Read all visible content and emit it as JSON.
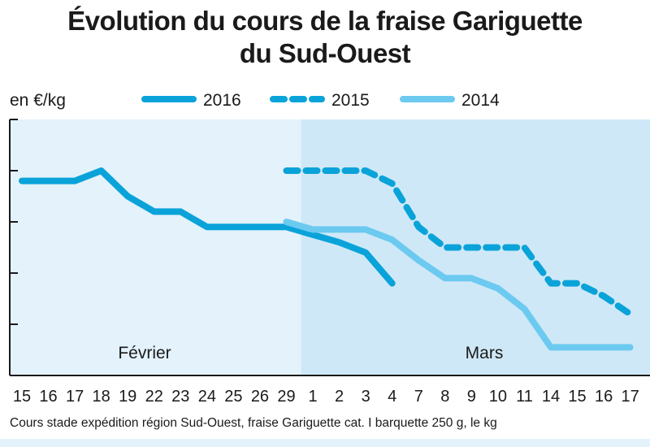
{
  "chart_data": {
    "type": "line",
    "title_line1": "Évolution du cours de la fraise Gariguette",
    "title_line2": "du Sud-Ouest",
    "ylabel": "en €/kg",
    "footnote": "Cours stade expédition région Sud-Ouest, fraise Gariguette cat. I barquette 250 g, le kg",
    "grid": false,
    "legend_position": "top",
    "ylim": [
      0,
      5
    ],
    "y_tick_labels_shown": false,
    "periods": [
      {
        "label": "Février",
        "from": 0,
        "to": 10,
        "color": "#e3f2fb"
      },
      {
        "label": "Mars",
        "from": 10,
        "to": 22,
        "color": "#cfe8f7"
      }
    ],
    "categories": [
      "15",
      "16",
      "17",
      "18",
      "19",
      "22",
      "23",
      "24",
      "25",
      "26",
      "29",
      "1",
      "2",
      "3",
      "4",
      "7",
      "8",
      "9",
      "10",
      "11",
      "14",
      "15",
      "16",
      "17"
    ],
    "series": [
      {
        "name": "2016",
        "style": "solid",
        "color": "#0aa3d9",
        "points": [
          [
            0,
            3.8
          ],
          [
            1,
            3.8
          ],
          [
            2,
            3.8
          ],
          [
            3,
            4.0
          ],
          [
            4,
            3.5
          ],
          [
            5,
            3.2
          ],
          [
            6,
            3.2
          ],
          [
            7,
            2.9
          ],
          [
            8,
            2.9
          ],
          [
            9,
            2.9
          ],
          [
            10,
            2.9
          ],
          [
            11,
            2.75
          ],
          [
            12,
            2.6
          ],
          [
            13,
            2.4
          ],
          [
            14,
            1.8
          ]
        ]
      },
      {
        "name": "2015",
        "style": "dashed",
        "color": "#0aa3d9",
        "points": [
          [
            10,
            4.0
          ],
          [
            11,
            4.0
          ],
          [
            12,
            4.0
          ],
          [
            13,
            4.0
          ],
          [
            14,
            3.75
          ],
          [
            15,
            2.9
          ],
          [
            16,
            2.5
          ],
          [
            17,
            2.5
          ],
          [
            18,
            2.5
          ],
          [
            19,
            2.5
          ],
          [
            20,
            1.8
          ],
          [
            21,
            1.8
          ],
          [
            22,
            1.55
          ],
          [
            23,
            1.2
          ]
        ]
      },
      {
        "name": "2014",
        "style": "solid",
        "color": "#6ccaf0",
        "points": [
          [
            10,
            3.0
          ],
          [
            11,
            2.85
          ],
          [
            12,
            2.85
          ],
          [
            13,
            2.85
          ],
          [
            14,
            2.65
          ],
          [
            15,
            2.25
          ],
          [
            16,
            1.9
          ],
          [
            17,
            1.9
          ],
          [
            18,
            1.7
          ],
          [
            19,
            1.3
          ],
          [
            20,
            0.55
          ],
          [
            21,
            0.55
          ],
          [
            22,
            0.55
          ],
          [
            23,
            0.55
          ]
        ]
      }
    ]
  }
}
